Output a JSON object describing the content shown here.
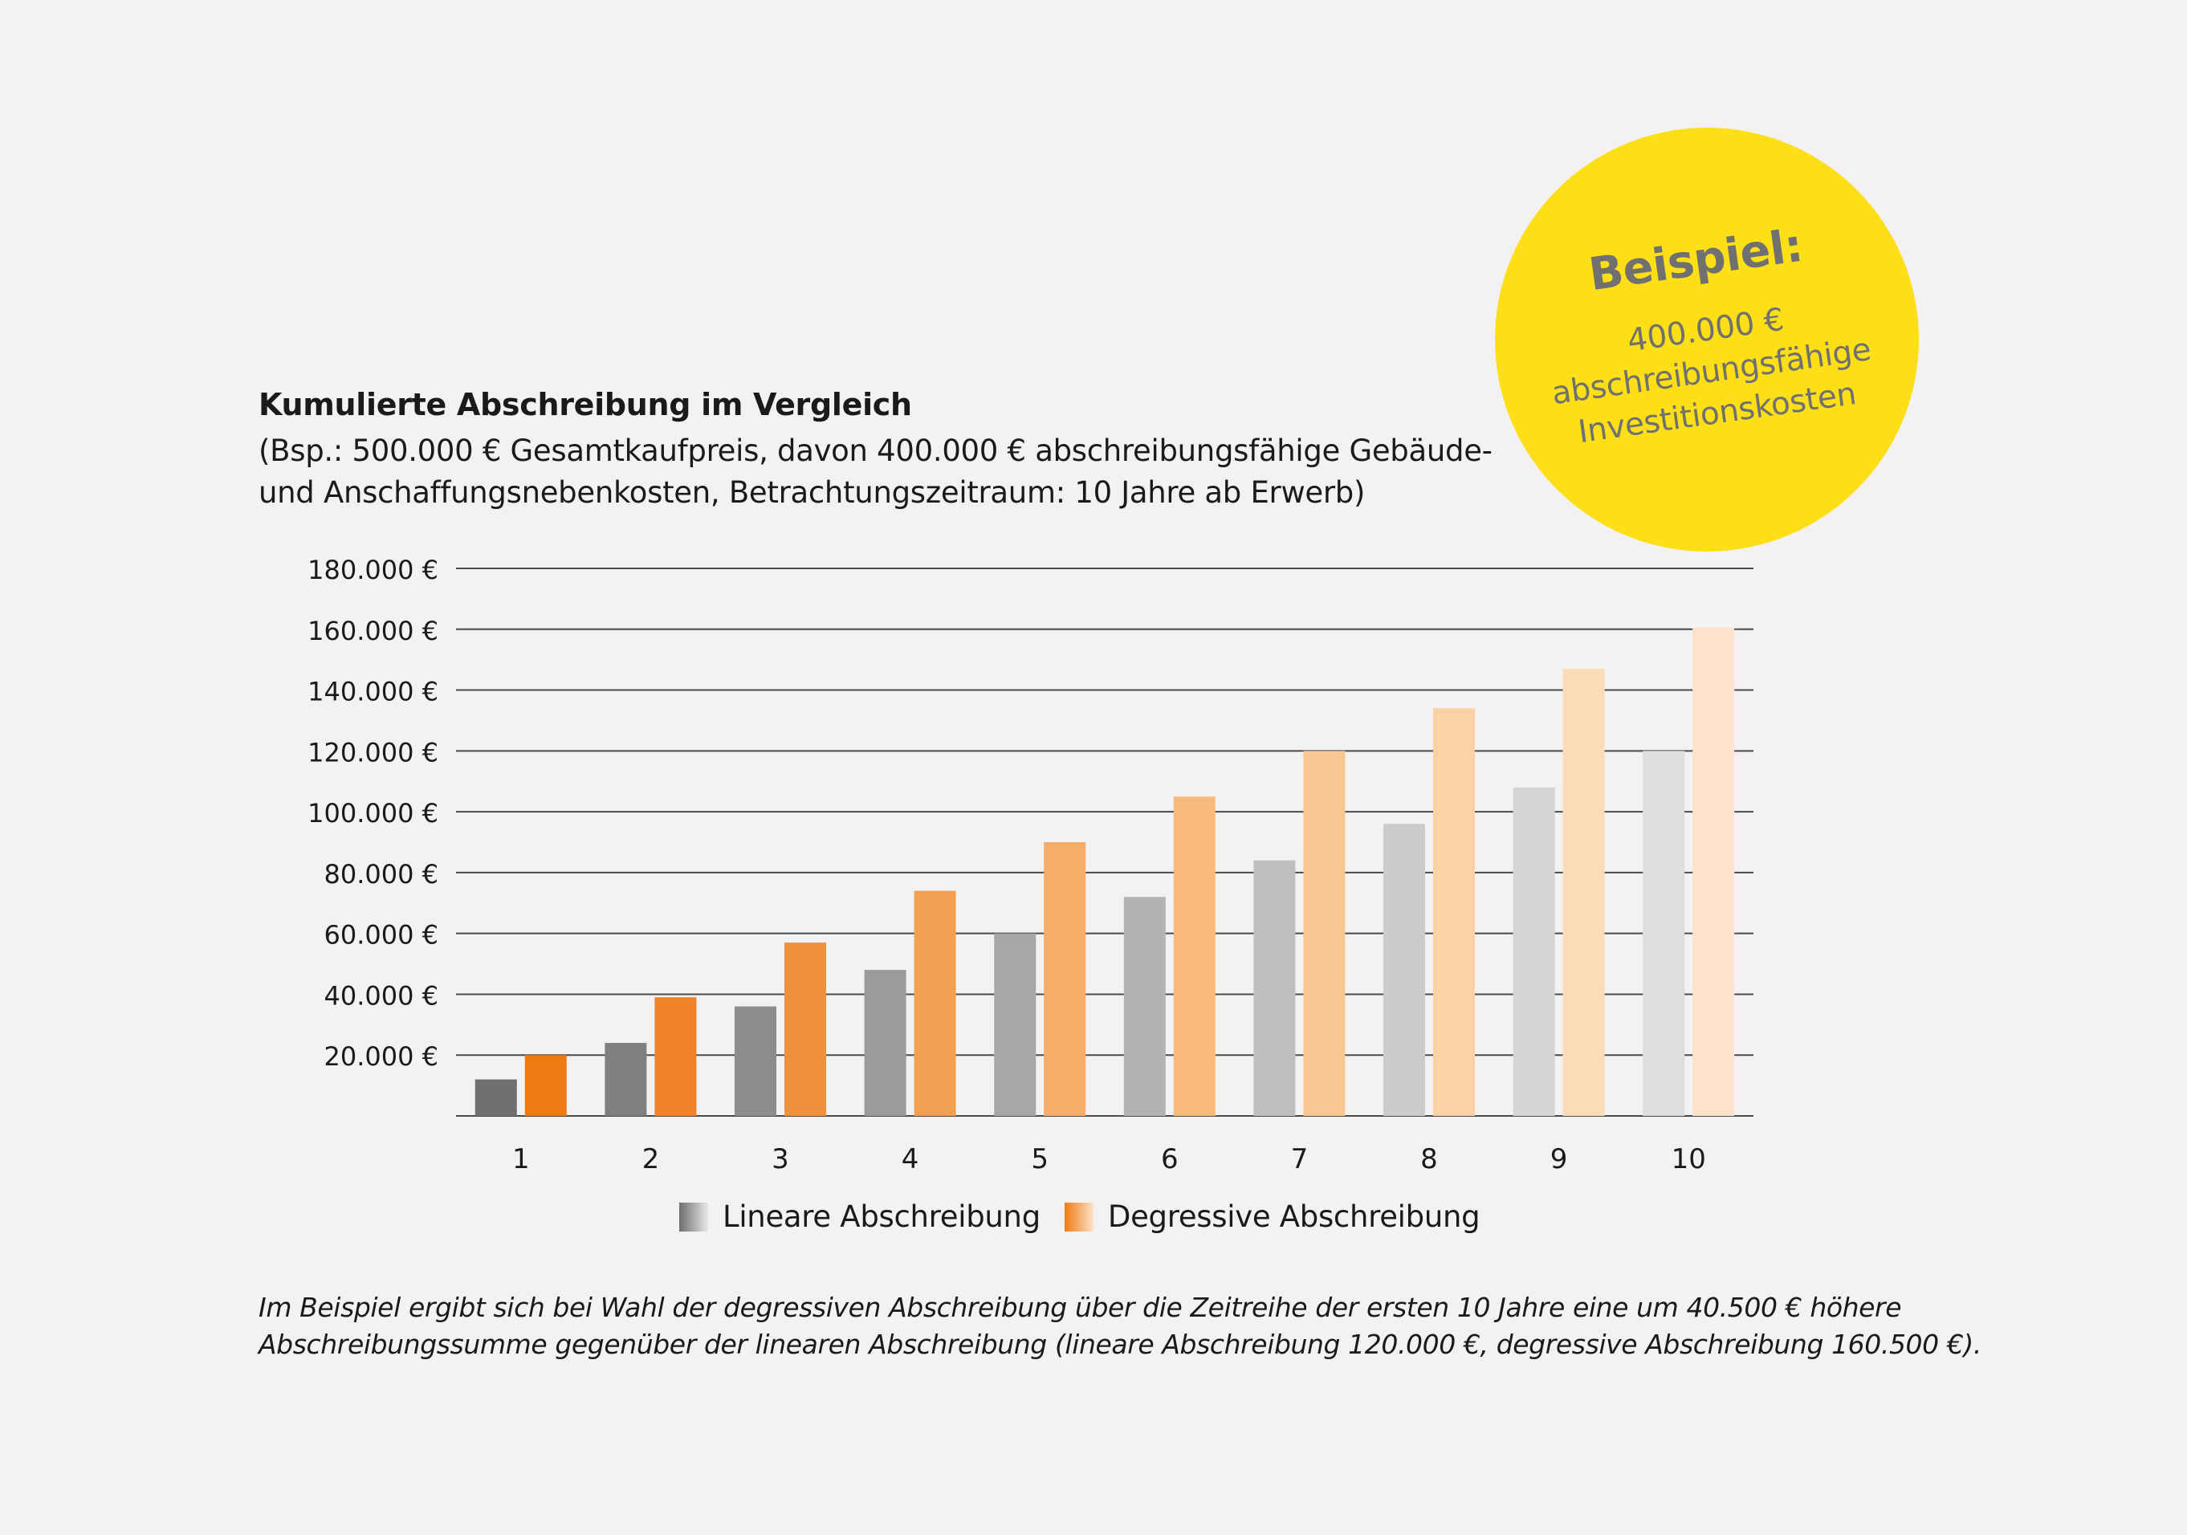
{
  "header": {
    "title": "Kumulierte Abschreibung im Vergleich",
    "subtitle_line1": "(Bsp.: 500.000 € Gesamtkaufpreis, davon 400.000 € abschreibungsfähige Gebäude-",
    "subtitle_line2": "und Anschaffungsnebenkosten, Betrachtungszeitraum: 10 Jahre ab Erwerb)"
  },
  "badge": {
    "title": "Beispiel:",
    "line1": "400.000 €",
    "line2": "abschreibungsfähige",
    "line3": "Investitionskosten",
    "color": "#fddf18"
  },
  "legend": {
    "linear_label": "Lineare Abschreibung",
    "degressive_label": "Degressive Abschreibung"
  },
  "footnote": {
    "line1": "Im Beispiel ergibt sich bei Wahl der degressiven Abschreibung über die Zeitreihe der ersten 10 Jahre eine um 40.500 € höhere",
    "line2": "Abschreibungssumme gegenüber der linearen Abschreibung (lineare Abschreibung 120.000 €, degressive Abschreibung 160.500 €)."
  },
  "chart_data": {
    "type": "bar",
    "title": "Kumulierte Abschreibung im Vergleich",
    "categories": [
      "1",
      "2",
      "3",
      "4",
      "5",
      "6",
      "7",
      "8",
      "9",
      "10"
    ],
    "series": [
      {
        "name": "Lineare Abschreibung",
        "values": [
          12000,
          24000,
          36000,
          48000,
          60000,
          72000,
          84000,
          96000,
          108000,
          120000
        ],
        "colors": [
          "#6f6f6f",
          "#7f7f7f",
          "#8d8d8d",
          "#9b9b9b",
          "#a7a7a7",
          "#b3b3b3",
          "#bfbfbf",
          "#cbcbcb",
          "#d5d5d5",
          "#dedede"
        ]
      },
      {
        "name": "Degressive Abschreibung",
        "values": [
          20000,
          39000,
          57000,
          74000,
          90000,
          105000,
          120000,
          134000,
          147000,
          160500
        ],
        "colors": [
          "#ee7a12",
          "#f08228",
          "#f2913d",
          "#f4a052",
          "#f5ad67",
          "#f7ba7c",
          "#f8c691",
          "#fad2a6",
          "#fbdcb9",
          "#fde3cb"
        ]
      }
    ],
    "yticks": [
      20000,
      40000,
      60000,
      80000,
      100000,
      120000,
      140000,
      160000,
      180000
    ],
    "ytick_labels": [
      "20.000 €",
      "40.000 €",
      "60.000 €",
      "80.000 €",
      "100.000 €",
      "120.000 €",
      "140.000 €",
      "160.000 €",
      "180.000 €"
    ],
    "ylim": [
      0,
      180000
    ],
    "xlabel": "",
    "ylabel": "",
    "grid": true,
    "legend_position": "bottom"
  }
}
